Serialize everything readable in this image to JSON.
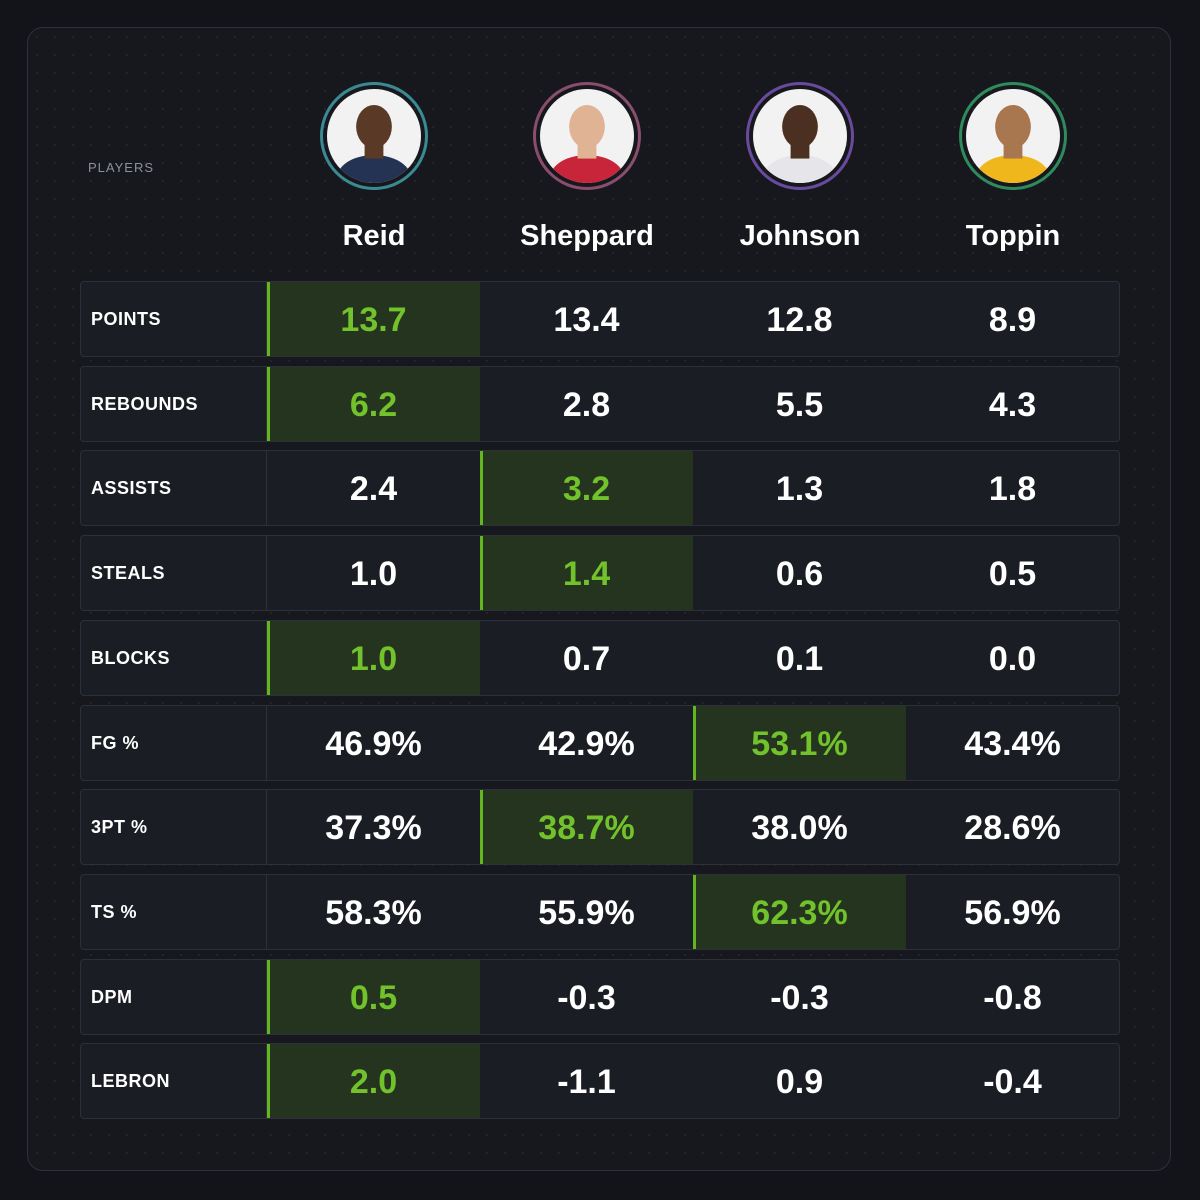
{
  "header": {
    "players_label": "PLAYERS"
  },
  "players": [
    {
      "name": "Reid",
      "ring_color": "#3b8a93",
      "skin": "#5a3a26",
      "jersey": "#243353"
    },
    {
      "name": "Sheppard",
      "ring_color": "#8a4d6c",
      "skin": "#e0b394",
      "jersey": "#c8253a"
    },
    {
      "name": "Johnson",
      "ring_color": "#6a4a9c",
      "skin": "#4b3021",
      "jersey": "#e6e6ea"
    },
    {
      "name": "Toppin",
      "ring_color": "#2f8a5c",
      "skin": "#a8764f",
      "jersey": "#f0b71c"
    }
  ],
  "highlight": {
    "text": "#72c22c",
    "fill": "#25341f",
    "bar": "#62b71f"
  },
  "rows": [
    {
      "label": "POINTS",
      "values": [
        "13.7",
        "13.4",
        "12.8",
        "8.9"
      ],
      "best": 0
    },
    {
      "label": "REBOUNDS",
      "values": [
        "6.2",
        "2.8",
        "5.5",
        "4.3"
      ],
      "best": 0
    },
    {
      "label": "ASSISTS",
      "values": [
        "2.4",
        "3.2",
        "1.3",
        "1.8"
      ],
      "best": 1
    },
    {
      "label": "STEALS",
      "values": [
        "1.0",
        "1.4",
        "0.6",
        "0.5"
      ],
      "best": 1
    },
    {
      "label": "BLOCKS",
      "values": [
        "1.0",
        "0.7",
        "0.1",
        "0.0"
      ],
      "best": 0
    },
    {
      "label": "FG %",
      "values": [
        "46.9%",
        "42.9%",
        "53.1%",
        "43.4%"
      ],
      "best": 2
    },
    {
      "label": "3PT %",
      "values": [
        "37.3%",
        "38.7%",
        "38.0%",
        "28.6%"
      ],
      "best": 1
    },
    {
      "label": "TS %",
      "values": [
        "58.3%",
        "55.9%",
        "62.3%",
        "56.9%"
      ],
      "best": 2
    },
    {
      "label": "DPM",
      "values": [
        "0.5",
        "-0.3",
        "-0.3",
        "-0.8"
      ],
      "best": 0
    },
    {
      "label": "LEBRON",
      "values": [
        "2.0",
        "-1.1",
        "0.9",
        "-0.4"
      ],
      "best": 0
    }
  ]
}
